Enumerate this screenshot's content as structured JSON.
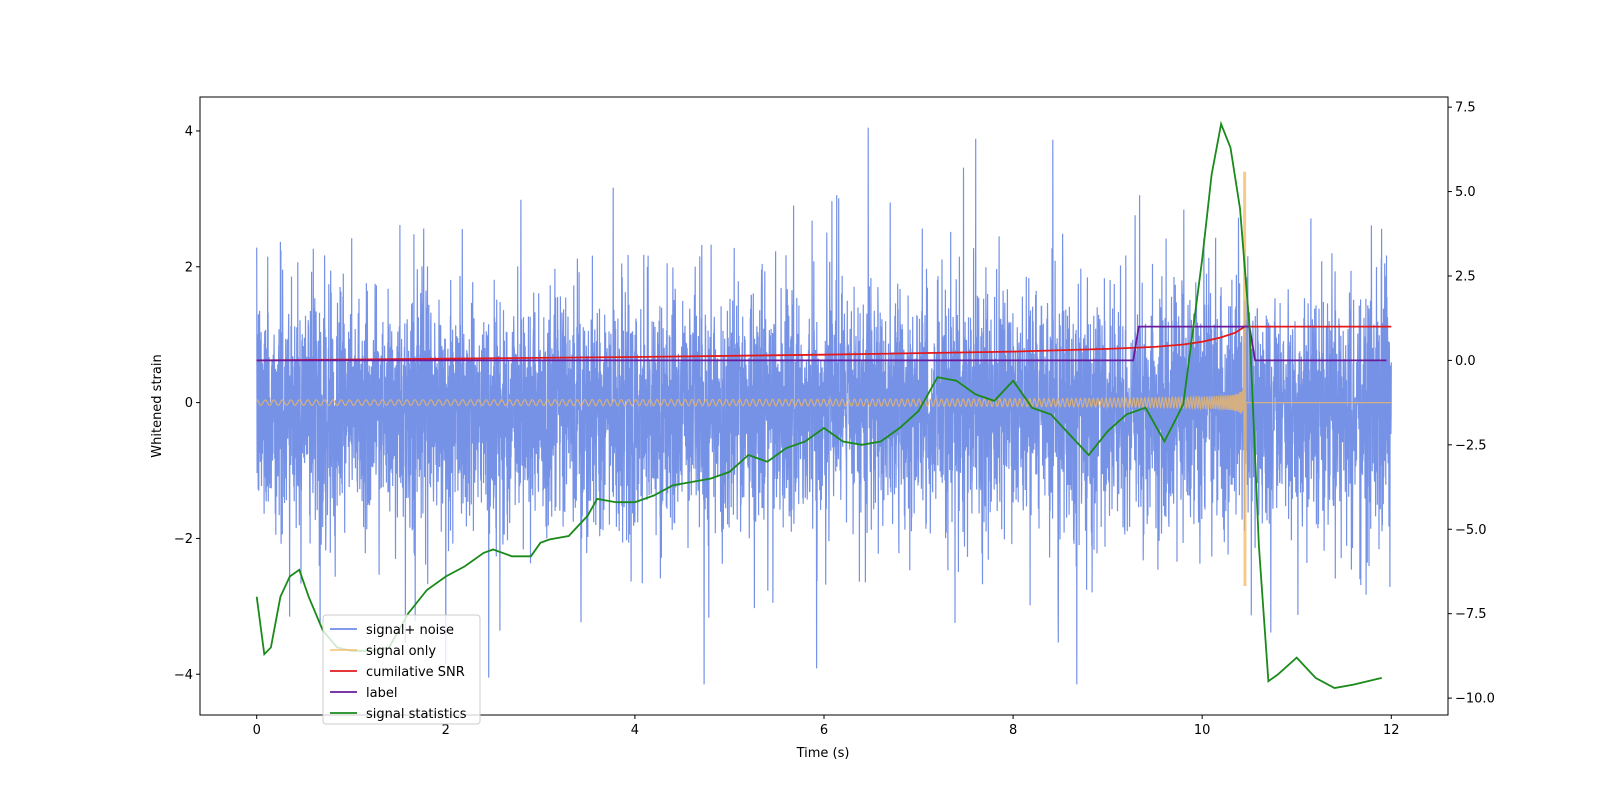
{
  "chart_data": {
    "type": "line",
    "xlabel": "Time (s)",
    "ylabel": "Whitened strain",
    "xlim": [
      -0.6,
      12.6
    ],
    "ylim": [
      -4.6,
      4.5
    ],
    "y2lim": [
      -10.5,
      7.8
    ],
    "xticks": [
      0,
      2,
      4,
      6,
      8,
      10,
      12
    ],
    "xtick_labels": [
      "0",
      "2",
      "4",
      "6",
      "8",
      "10",
      "12"
    ],
    "yticks": [
      -4,
      -2,
      0,
      2,
      4
    ],
    "ytick_labels": [
      "−4",
      "−2",
      "0",
      "2",
      "4"
    ],
    "y2ticks": [
      -10,
      -7.5,
      -5,
      -2.5,
      0,
      2.5,
      5,
      7.5
    ],
    "y2tick_labels": [
      "−10.0",
      "−7.5",
      "−5.0",
      "−2.5",
      "0.0",
      "2.5",
      "5.0",
      "7.5"
    ],
    "legend_position": "lower-left",
    "colors": {
      "noise": "#6f8ce6",
      "signal": "#f4b85f",
      "snr": "#e31a1c",
      "label": "#6a1b9a",
      "stats": "#1a8a1a"
    },
    "series": [
      {
        "name": "signal+ noise",
        "axis": "left",
        "description_values": {
          "typical_band": [
            -1.6,
            1.4
          ],
          "peak_max": 4.05,
          "peak_min": -4.15,
          "t_range": [
            0,
            12
          ]
        }
      },
      {
        "name": "signal only",
        "axis": "left",
        "chirp": {
          "t_start": 0,
          "t_merge": 10.45,
          "t_end": 12,
          "amp_start": 0.04,
          "amp_peak": 3.4,
          "amp_peak_neg": -2.7
        }
      },
      {
        "name": "cumilative SNR",
        "axis": "right",
        "x": [
          0,
          2,
          4,
          6,
          8,
          9,
          9.5,
          9.8,
          10,
          10.2,
          10.35,
          10.45,
          10.5,
          12
        ],
        "y": [
          0.0,
          0.05,
          0.1,
          0.17,
          0.26,
          0.34,
          0.4,
          0.47,
          0.55,
          0.68,
          0.82,
          1.0,
          1.0,
          1.0
        ]
      },
      {
        "name": "label",
        "axis": "right",
        "x": [
          0,
          9.27,
          9.33,
          10.5,
          10.56,
          11.95
        ],
        "y": [
          0,
          0,
          1,
          1,
          0,
          0
        ]
      },
      {
        "name": "signal statistics",
        "axis": "right",
        "x": [
          0,
          0.08,
          0.15,
          0.25,
          0.35,
          0.45,
          0.55,
          0.7,
          0.85,
          1.0,
          1.2,
          1.4,
          1.6,
          1.8,
          2.0,
          2.2,
          2.4,
          2.5,
          2.7,
          2.9,
          3.0,
          3.1,
          3.3,
          3.5,
          3.6,
          3.8,
          4.0,
          4.2,
          4.4,
          4.6,
          4.8,
          5.0,
          5.2,
          5.4,
          5.6,
          5.8,
          6.0,
          6.2,
          6.4,
          6.6,
          6.8,
          7.0,
          7.2,
          7.4,
          7.6,
          7.8,
          8.0,
          8.2,
          8.4,
          8.6,
          8.8,
          9.0,
          9.2,
          9.4,
          9.6,
          9.8,
          10.0,
          10.1,
          10.2,
          10.3,
          10.4,
          10.5,
          10.6,
          10.7,
          10.8,
          11.0,
          11.2,
          11.4,
          11.6,
          11.9
        ],
        "y": [
          -7.0,
          -8.7,
          -8.5,
          -7.0,
          -6.4,
          -6.2,
          -7.0,
          -8.0,
          -8.5,
          -8.6,
          -8.6,
          -8.5,
          -7.5,
          -6.8,
          -6.4,
          -6.1,
          -5.7,
          -5.6,
          -5.8,
          -5.8,
          -5.4,
          -5.3,
          -5.2,
          -4.6,
          -4.1,
          -4.2,
          -4.2,
          -4.0,
          -3.7,
          -3.6,
          -3.5,
          -3.3,
          -2.8,
          -3.0,
          -2.6,
          -2.4,
          -2.0,
          -2.4,
          -2.5,
          -2.4,
          -2.0,
          -1.5,
          -0.5,
          -0.6,
          -1.0,
          -1.2,
          -0.6,
          -1.4,
          -1.6,
          -2.2,
          -2.8,
          -2.1,
          -1.6,
          -1.4,
          -2.4,
          -1.3,
          3.0,
          5.5,
          7.0,
          6.3,
          4.5,
          1.0,
          -5.5,
          -9.5,
          -9.3,
          -8.8,
          -9.4,
          -9.7,
          -9.6,
          -9.4
        ]
      }
    ]
  }
}
